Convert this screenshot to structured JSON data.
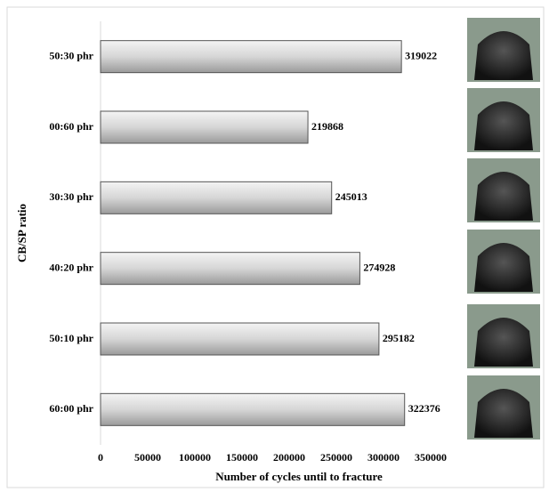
{
  "chart_data": {
    "type": "bar",
    "orientation": "horizontal",
    "x_label": "Number of cycles until to fracture",
    "y_label": "CB/SP ratio",
    "categories": [
      "50:30 phr",
      "00:60 phr",
      "30:30 phr",
      "40:20 phr",
      "50:10 phr",
      "60:00 phr"
    ],
    "values": [
      319022,
      219868,
      245013,
      274928,
      295182,
      322376
    ],
    "color": "#c8c8c8",
    "xlim": [
      0,
      350000
    ],
    "xticks": [
      0,
      50000,
      100000,
      150000,
      200000,
      250000,
      300000,
      350000
    ],
    "grid": false
  }
}
